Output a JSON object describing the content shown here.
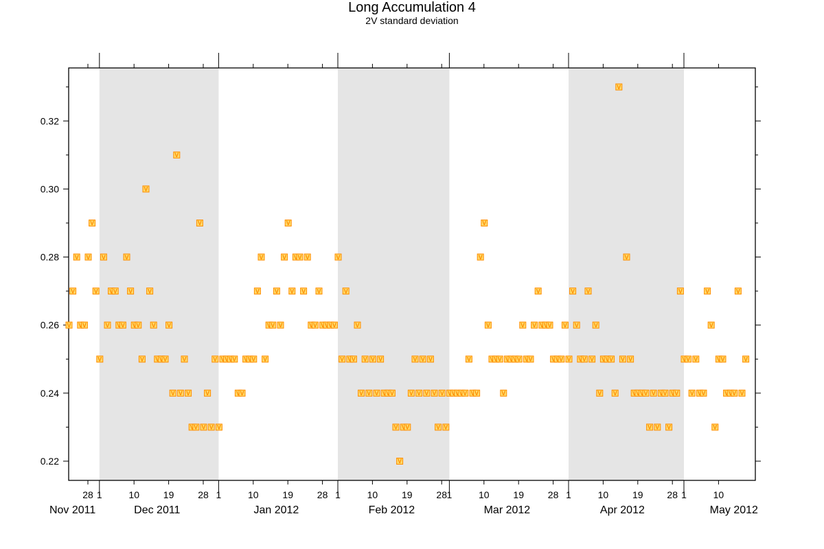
{
  "chart_data": {
    "type": "scatter",
    "title": "Long Accumulation 4",
    "subtitle": "2V standard deviation",
    "xlabel": "",
    "ylabel": "",
    "marker_label": "V",
    "xlim": [
      "2011-11-23",
      "2012-05-20"
    ],
    "ylim": [
      0.215,
      0.335
    ],
    "yticks": [
      "0.22",
      "0.24",
      "0.26",
      "0.28",
      "0.30",
      "0.32"
    ],
    "grid": false,
    "shaded_months": [
      "2011-12",
      "2012-02",
      "2012-04"
    ],
    "x_ticks": [
      {
        "date": "2011-11-28",
        "label": "28"
      },
      {
        "date": "2011-12-01",
        "label": "1"
      },
      {
        "date": "2011-12-10",
        "label": "10"
      },
      {
        "date": "2011-12-19",
        "label": "19"
      },
      {
        "date": "2011-12-28",
        "label": "28"
      },
      {
        "date": "2012-01-01",
        "label": "1"
      },
      {
        "date": "2012-01-10",
        "label": "10"
      },
      {
        "date": "2012-01-19",
        "label": "19"
      },
      {
        "date": "2012-01-28",
        "label": "28"
      },
      {
        "date": "2012-02-01",
        "label": "1"
      },
      {
        "date": "2012-02-10",
        "label": "10"
      },
      {
        "date": "2012-02-19",
        "label": "19"
      },
      {
        "date": "2012-02-28",
        "label": "28"
      },
      {
        "date": "2012-03-01",
        "label": "1"
      },
      {
        "date": "2012-03-10",
        "label": "10"
      },
      {
        "date": "2012-03-19",
        "label": "19"
      },
      {
        "date": "2012-03-28",
        "label": "28"
      },
      {
        "date": "2012-04-01",
        "label": "1"
      },
      {
        "date": "2012-04-10",
        "label": "10"
      },
      {
        "date": "2012-04-19",
        "label": "19"
      },
      {
        "date": "2012-04-28",
        "label": "28"
      },
      {
        "date": "2012-05-01",
        "label": "1"
      },
      {
        "date": "2012-05-10",
        "label": "10"
      }
    ],
    "month_labels": [
      {
        "date": "2011-11-24",
        "label": "Nov 2011"
      },
      {
        "date": "2011-12-16",
        "label": "Dec 2011"
      },
      {
        "date": "2012-01-16",
        "label": "Jan 2012"
      },
      {
        "date": "2012-02-15",
        "label": "Feb 2012"
      },
      {
        "date": "2012-03-16",
        "label": "Mar 2012"
      },
      {
        "date": "2012-04-15",
        "label": "Apr 2012"
      },
      {
        "date": "2012-05-14",
        "label": "May 2012"
      }
    ],
    "series": [
      {
        "points": [
          {
            "x": "2011-11-23",
            "y": 0.26
          },
          {
            "x": "2011-11-24",
            "y": 0.27
          },
          {
            "x": "2011-11-25",
            "y": 0.28
          },
          {
            "x": "2011-11-26",
            "y": 0.26
          },
          {
            "x": "2011-11-27",
            "y": 0.26
          },
          {
            "x": "2011-11-28",
            "y": 0.28
          },
          {
            "x": "2011-11-29",
            "y": 0.29
          },
          {
            "x": "2011-11-30",
            "y": 0.27
          },
          {
            "x": "2011-12-01",
            "y": 0.25
          },
          {
            "x": "2011-12-02",
            "y": 0.28
          },
          {
            "x": "2011-12-03",
            "y": 0.26
          },
          {
            "x": "2011-12-04",
            "y": 0.27
          },
          {
            "x": "2011-12-05",
            "y": 0.27
          },
          {
            "x": "2011-12-06",
            "y": 0.26
          },
          {
            "x": "2011-12-07",
            "y": 0.26
          },
          {
            "x": "2011-12-08",
            "y": 0.28
          },
          {
            "x": "2011-12-09",
            "y": 0.27
          },
          {
            "x": "2011-12-10",
            "y": 0.26
          },
          {
            "x": "2011-12-11",
            "y": 0.26
          },
          {
            "x": "2011-12-12",
            "y": 0.25
          },
          {
            "x": "2011-12-13",
            "y": 0.3
          },
          {
            "x": "2011-12-14",
            "y": 0.27
          },
          {
            "x": "2011-12-15",
            "y": 0.26
          },
          {
            "x": "2011-12-16",
            "y": 0.25
          },
          {
            "x": "2011-12-17",
            "y": 0.25
          },
          {
            "x": "2011-12-18",
            "y": 0.25
          },
          {
            "x": "2011-12-19",
            "y": 0.26
          },
          {
            "x": "2011-12-20",
            "y": 0.24
          },
          {
            "x": "2011-12-21",
            "y": 0.31
          },
          {
            "x": "2011-12-22",
            "y": 0.24
          },
          {
            "x": "2011-12-23",
            "y": 0.25
          },
          {
            "x": "2011-12-24",
            "y": 0.24
          },
          {
            "x": "2011-12-25",
            "y": 0.23
          },
          {
            "x": "2011-12-26",
            "y": 0.23
          },
          {
            "x": "2011-12-27",
            "y": 0.29
          },
          {
            "x": "2011-12-28",
            "y": 0.23
          },
          {
            "x": "2011-12-29",
            "y": 0.24
          },
          {
            "x": "2011-12-30",
            "y": 0.23
          },
          {
            "x": "2011-12-31",
            "y": 0.25
          },
          {
            "x": "2012-01-01",
            "y": 0.23
          },
          {
            "x": "2012-01-02",
            "y": 0.25
          },
          {
            "x": "2012-01-03",
            "y": 0.25
          },
          {
            "x": "2012-01-04",
            "y": 0.25
          },
          {
            "x": "2012-01-05",
            "y": 0.25
          },
          {
            "x": "2012-01-06",
            "y": 0.24
          },
          {
            "x": "2012-01-07",
            "y": 0.24
          },
          {
            "x": "2012-01-08",
            "y": 0.25
          },
          {
            "x": "2012-01-09",
            "y": 0.25
          },
          {
            "x": "2012-01-10",
            "y": 0.25
          },
          {
            "x": "2012-01-11",
            "y": 0.27
          },
          {
            "x": "2012-01-12",
            "y": 0.28
          },
          {
            "x": "2012-01-13",
            "y": 0.25
          },
          {
            "x": "2012-01-14",
            "y": 0.26
          },
          {
            "x": "2012-01-15",
            "y": 0.26
          },
          {
            "x": "2012-01-16",
            "y": 0.27
          },
          {
            "x": "2012-01-17",
            "y": 0.26
          },
          {
            "x": "2012-01-18",
            "y": 0.28
          },
          {
            "x": "2012-01-19",
            "y": 0.29
          },
          {
            "x": "2012-01-20",
            "y": 0.27
          },
          {
            "x": "2012-01-21",
            "y": 0.28
          },
          {
            "x": "2012-01-22",
            "y": 0.28
          },
          {
            "x": "2012-01-23",
            "y": 0.27
          },
          {
            "x": "2012-01-24",
            "y": 0.28
          },
          {
            "x": "2012-01-25",
            "y": 0.26
          },
          {
            "x": "2012-01-26",
            "y": 0.26
          },
          {
            "x": "2012-01-27",
            "y": 0.27
          },
          {
            "x": "2012-01-28",
            "y": 0.26
          },
          {
            "x": "2012-01-29",
            "y": 0.26
          },
          {
            "x": "2012-01-30",
            "y": 0.26
          },
          {
            "x": "2012-01-31",
            "y": 0.26
          },
          {
            "x": "2012-02-01",
            "y": 0.28
          },
          {
            "x": "2012-02-02",
            "y": 0.25
          },
          {
            "x": "2012-02-03",
            "y": 0.27
          },
          {
            "x": "2012-02-04",
            "y": 0.25
          },
          {
            "x": "2012-02-05",
            "y": 0.25
          },
          {
            "x": "2012-02-06",
            "y": 0.26
          },
          {
            "x": "2012-02-07",
            "y": 0.24
          },
          {
            "x": "2012-02-08",
            "y": 0.25
          },
          {
            "x": "2012-02-09",
            "y": 0.24
          },
          {
            "x": "2012-02-10",
            "y": 0.25
          },
          {
            "x": "2012-02-11",
            "y": 0.24
          },
          {
            "x": "2012-02-12",
            "y": 0.25
          },
          {
            "x": "2012-02-13",
            "y": 0.24
          },
          {
            "x": "2012-02-14",
            "y": 0.24
          },
          {
            "x": "2012-02-15",
            "y": 0.24
          },
          {
            "x": "2012-02-16",
            "y": 0.23
          },
          {
            "x": "2012-02-17",
            "y": 0.22
          },
          {
            "x": "2012-02-18",
            "y": 0.23
          },
          {
            "x": "2012-02-19",
            "y": 0.23
          },
          {
            "x": "2012-02-20",
            "y": 0.24
          },
          {
            "x": "2012-02-21",
            "y": 0.25
          },
          {
            "x": "2012-02-22",
            "y": 0.24
          },
          {
            "x": "2012-02-23",
            "y": 0.25
          },
          {
            "x": "2012-02-24",
            "y": 0.24
          },
          {
            "x": "2012-02-25",
            "y": 0.25
          },
          {
            "x": "2012-02-26",
            "y": 0.24
          },
          {
            "x": "2012-02-27",
            "y": 0.23
          },
          {
            "x": "2012-02-28",
            "y": 0.24
          },
          {
            "x": "2012-02-29",
            "y": 0.23
          },
          {
            "x": "2012-03-01",
            "y": 0.24
          },
          {
            "x": "2012-03-02",
            "y": 0.24
          },
          {
            "x": "2012-03-03",
            "y": 0.24
          },
          {
            "x": "2012-03-04",
            "y": 0.24
          },
          {
            "x": "2012-03-05",
            "y": 0.24
          },
          {
            "x": "2012-03-06",
            "y": 0.25
          },
          {
            "x": "2012-03-07",
            "y": 0.24
          },
          {
            "x": "2012-03-08",
            "y": 0.24
          },
          {
            "x": "2012-03-09",
            "y": 0.28
          },
          {
            "x": "2012-03-10",
            "y": 0.29
          },
          {
            "x": "2012-03-11",
            "y": 0.26
          },
          {
            "x": "2012-03-12",
            "y": 0.25
          },
          {
            "x": "2012-03-13",
            "y": 0.25
          },
          {
            "x": "2012-03-14",
            "y": 0.25
          },
          {
            "x": "2012-03-15",
            "y": 0.24
          },
          {
            "x": "2012-03-16",
            "y": 0.25
          },
          {
            "x": "2012-03-17",
            "y": 0.25
          },
          {
            "x": "2012-03-18",
            "y": 0.25
          },
          {
            "x": "2012-03-19",
            "y": 0.25
          },
          {
            "x": "2012-03-20",
            "y": 0.26
          },
          {
            "x": "2012-03-21",
            "y": 0.25
          },
          {
            "x": "2012-03-22",
            "y": 0.25
          },
          {
            "x": "2012-03-23",
            "y": 0.26
          },
          {
            "x": "2012-03-24",
            "y": 0.27
          },
          {
            "x": "2012-03-25",
            "y": 0.26
          },
          {
            "x": "2012-03-26",
            "y": 0.26
          },
          {
            "x": "2012-03-27",
            "y": 0.26
          },
          {
            "x": "2012-03-28",
            "y": 0.25
          },
          {
            "x": "2012-03-29",
            "y": 0.25
          },
          {
            "x": "2012-03-30",
            "y": 0.25
          },
          {
            "x": "2012-03-31",
            "y": 0.26
          },
          {
            "x": "2012-04-01",
            "y": 0.25
          },
          {
            "x": "2012-04-02",
            "y": 0.27
          },
          {
            "x": "2012-04-03",
            "y": 0.26
          },
          {
            "x": "2012-04-04",
            "y": 0.25
          },
          {
            "x": "2012-04-05",
            "y": 0.25
          },
          {
            "x": "2012-04-06",
            "y": 0.27
          },
          {
            "x": "2012-04-07",
            "y": 0.25
          },
          {
            "x": "2012-04-08",
            "y": 0.26
          },
          {
            "x": "2012-04-09",
            "y": 0.24
          },
          {
            "x": "2012-04-10",
            "y": 0.25
          },
          {
            "x": "2012-04-11",
            "y": 0.25
          },
          {
            "x": "2012-04-12",
            "y": 0.25
          },
          {
            "x": "2012-04-13",
            "y": 0.24
          },
          {
            "x": "2012-04-14",
            "y": 0.33
          },
          {
            "x": "2012-04-15",
            "y": 0.25
          },
          {
            "x": "2012-04-16",
            "y": 0.28
          },
          {
            "x": "2012-04-17",
            "y": 0.25
          },
          {
            "x": "2012-04-18",
            "y": 0.24
          },
          {
            "x": "2012-04-19",
            "y": 0.24
          },
          {
            "x": "2012-04-20",
            "y": 0.24
          },
          {
            "x": "2012-04-21",
            "y": 0.24
          },
          {
            "x": "2012-04-22",
            "y": 0.23
          },
          {
            "x": "2012-04-23",
            "y": 0.24
          },
          {
            "x": "2012-04-24",
            "y": 0.23
          },
          {
            "x": "2012-04-25",
            "y": 0.24
          },
          {
            "x": "2012-04-26",
            "y": 0.24
          },
          {
            "x": "2012-04-27",
            "y": 0.23
          },
          {
            "x": "2012-04-28",
            "y": 0.24
          },
          {
            "x": "2012-04-29",
            "y": 0.24
          },
          {
            "x": "2012-04-30",
            "y": 0.27
          },
          {
            "x": "2012-05-01",
            "y": 0.25
          },
          {
            "x": "2012-05-02",
            "y": 0.25
          },
          {
            "x": "2012-05-03",
            "y": 0.24
          },
          {
            "x": "2012-05-04",
            "y": 0.25
          },
          {
            "x": "2012-05-05",
            "y": 0.24
          },
          {
            "x": "2012-05-06",
            "y": 0.24
          },
          {
            "x": "2012-05-07",
            "y": 0.27
          },
          {
            "x": "2012-05-08",
            "y": 0.26
          },
          {
            "x": "2012-05-09",
            "y": 0.23
          },
          {
            "x": "2012-05-10",
            "y": 0.25
          },
          {
            "x": "2012-05-11",
            "y": 0.25
          },
          {
            "x": "2012-05-12",
            "y": 0.24
          },
          {
            "x": "2012-05-13",
            "y": 0.24
          },
          {
            "x": "2012-05-14",
            "y": 0.24
          },
          {
            "x": "2012-05-15",
            "y": 0.27
          },
          {
            "x": "2012-05-16",
            "y": 0.24
          },
          {
            "x": "2012-05-17",
            "y": 0.25
          }
        ]
      }
    ]
  },
  "colors": {
    "marker_stroke": "#ff8c00",
    "marker_fill": "#ffd966",
    "shade": "#e5e5e5",
    "axis": "#000000"
  }
}
